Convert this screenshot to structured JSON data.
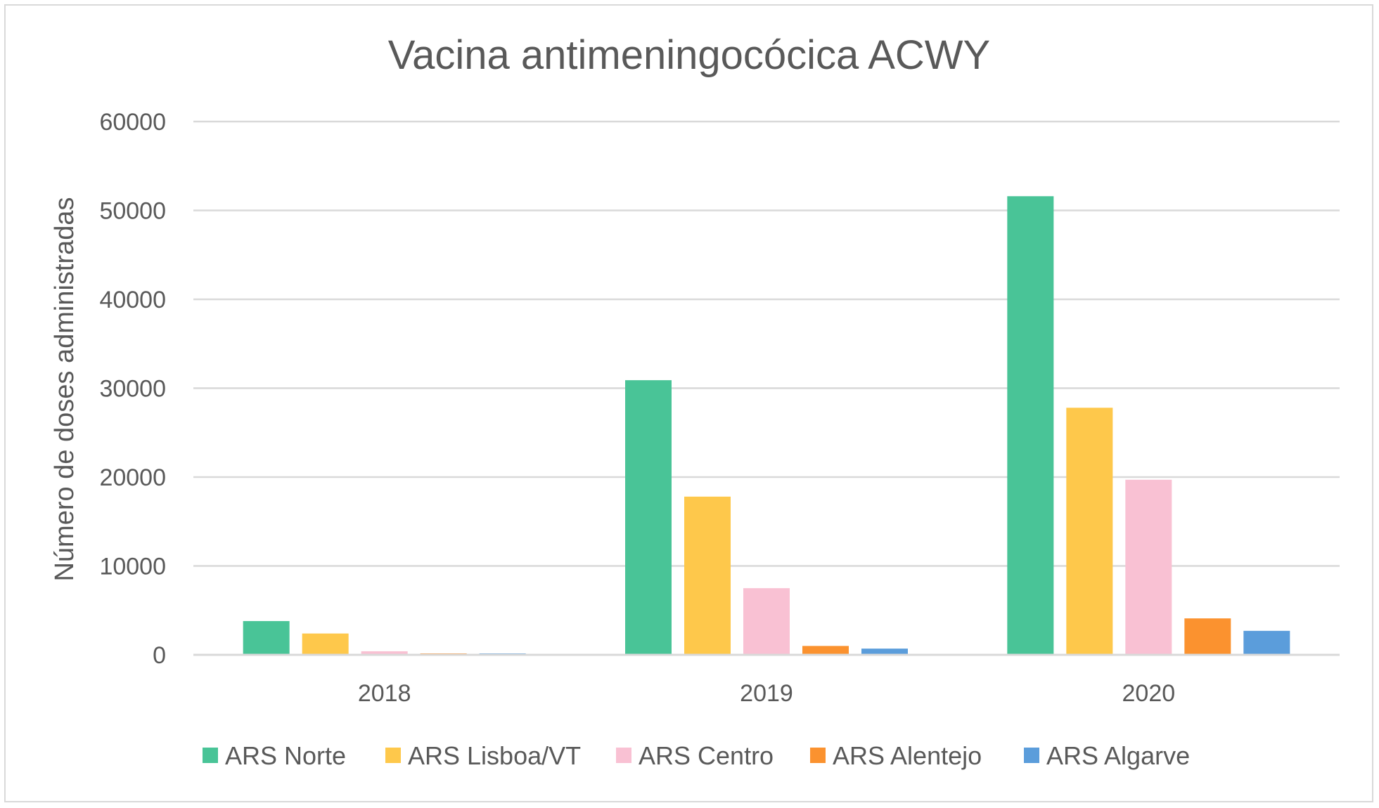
{
  "chart_data": {
    "type": "bar",
    "title": "Vacina antimeningocócica ACWY",
    "xlabel": "",
    "ylabel": "Número de doses administradas",
    "categories": [
      "2018",
      "2019",
      "2020"
    ],
    "ylim": [
      0,
      60000
    ],
    "yticks": [
      0,
      10000,
      20000,
      30000,
      40000,
      50000,
      60000
    ],
    "ytick_labels": [
      "0",
      "10000",
      "20000",
      "30000",
      "40000",
      "50000",
      "60000"
    ],
    "grid": true,
    "legend_position": "bottom",
    "series": [
      {
        "name": "ARS Norte",
        "color": "#49c497",
        "values": [
          3800,
          30900,
          51600
        ]
      },
      {
        "name": "ARS Lisboa/VT",
        "color": "#fec84b",
        "values": [
          2400,
          17800,
          27800
        ]
      },
      {
        "name": "ARS Centro",
        "color": "#f9c1d3",
        "values": [
          400,
          7500,
          19700
        ]
      },
      {
        "name": "ARS Alentejo",
        "color": "#fb922f",
        "values": [
          100,
          1000,
          4100
        ]
      },
      {
        "name": "ARS Algarve",
        "color": "#5b9ddb",
        "values": [
          100,
          700,
          2700
        ]
      }
    ]
  }
}
